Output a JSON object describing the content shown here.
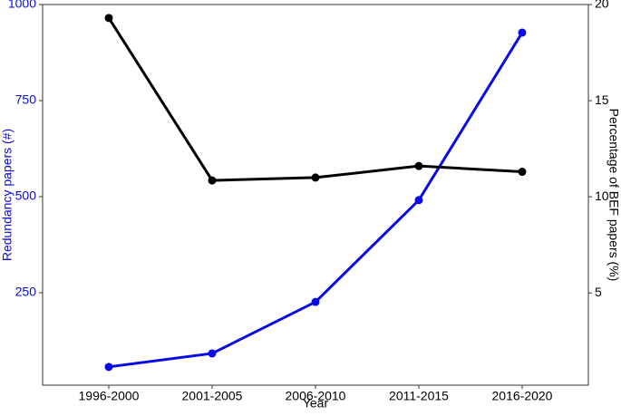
{
  "chart_data": {
    "type": "line",
    "x_label": "Year",
    "y_label": "Redundancy papers (#)",
    "y2_label": "Percentage of BEF papers (%)",
    "categories": [
      "1996-2000",
      "2001-2005",
      "2006-2010",
      "2011-2015",
      "2016-2020"
    ],
    "series": [
      {
        "name": "Redundancy papers (#)",
        "color": "#0a0ae6",
        "values": [
          57,
          92,
          226,
          491,
          927
        ]
      },
      {
        "name": "Percentage of BEF papers (%)",
        "color": "#000000",
        "axis": "y2",
        "values": [
          19.3,
          10.85,
          11.0,
          11.6,
          11.3
        ]
      }
    ],
    "ylim": [
      9.4,
      1000
    ],
    "yticks": [
      250,
      500,
      750,
      1000
    ],
    "y2lim": [
      0.2,
      20
    ],
    "y2ticks": [
      5,
      10,
      15,
      20
    ],
    "y_color": "#0a0ae6"
  }
}
